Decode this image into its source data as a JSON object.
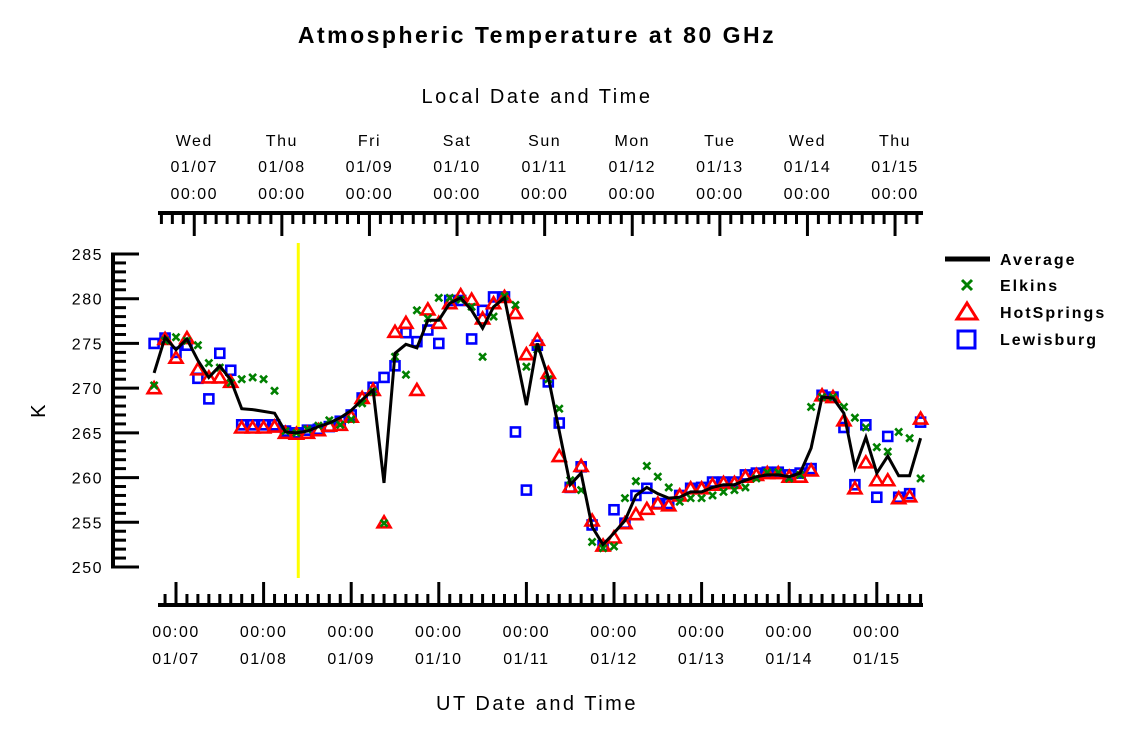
{
  "chart_data": {
    "type": "line",
    "title": "Atmospheric Temperature at 80 GHz",
    "top_axis_label": "Local Date and Time",
    "xlabel": "UT Date and Time",
    "ylabel": "K",
    "ylim": [
      250,
      285
    ],
    "yticks": [
      "250",
      "255",
      "260",
      "265",
      "270",
      "275",
      "280",
      "285"
    ],
    "x_units": "hours since 01/07 00:00 UT",
    "xlim": [
      -6,
      205
    ],
    "bottom_ticks": [
      {
        "time": "00:00",
        "date": "01/07"
      },
      {
        "time": "00:00",
        "date": "01/08"
      },
      {
        "time": "00:00",
        "date": "01/09"
      },
      {
        "time": "00:00",
        "date": "01/10"
      },
      {
        "time": "00:00",
        "date": "01/11"
      },
      {
        "time": "00:00",
        "date": "01/12"
      },
      {
        "time": "00:00",
        "date": "01/13"
      },
      {
        "time": "00:00",
        "date": "01/14"
      },
      {
        "time": "00:00",
        "date": "01/15"
      }
    ],
    "top_ticks": [
      {
        "day": "Wed",
        "date": "01/07",
        "time": "00:00"
      },
      {
        "day": "Thu",
        "date": "01/08",
        "time": "00:00"
      },
      {
        "day": "Fri",
        "date": "01/09",
        "time": "00:00"
      },
      {
        "day": "Sat",
        "date": "01/10",
        "time": "00:00"
      },
      {
        "day": "Sun",
        "date": "01/11",
        "time": "00:00"
      },
      {
        "day": "Mon",
        "date": "01/12",
        "time": "00:00"
      },
      {
        "day": "Tue",
        "date": "01/13",
        "time": "00:00"
      },
      {
        "day": "Wed",
        "date": "01/14",
        "time": "00:00"
      },
      {
        "day": "Thu",
        "date": "01/15",
        "time": "00:00"
      }
    ],
    "local_offset_hours": -5,
    "marker_line_hours": 33.5,
    "x": [
      -6,
      -3,
      0,
      3,
      6,
      9,
      12,
      15,
      18,
      21,
      24,
      27,
      30,
      33,
      36,
      39,
      42,
      45,
      48,
      51,
      54,
      57,
      60,
      63,
      66,
      69,
      72,
      75,
      78,
      81,
      84,
      87,
      90,
      93,
      96,
      99,
      102,
      105,
      108,
      111,
      114,
      117,
      120,
      123,
      126,
      129,
      132,
      135,
      138,
      141,
      144,
      147,
      150,
      153,
      156,
      159,
      162,
      165,
      168,
      171,
      174,
      177,
      180,
      183,
      186,
      189,
      192,
      195,
      198,
      201,
      204
    ],
    "legend_position": "right",
    "series": [
      {
        "name": "Average",
        "style": "line",
        "color": "#000000",
        "values": [
          271.7,
          275.7,
          274.3,
          275.5,
          273.1,
          271.2,
          272.5,
          270.9,
          267.7,
          267.6,
          267.4,
          267.2,
          265.1,
          265.0,
          265.2,
          265.7,
          266.1,
          266.7,
          267.5,
          268.7,
          269.8,
          259.4,
          273.9,
          274.9,
          274.5,
          277.6,
          277.6,
          279.5,
          280.1,
          278.7,
          276.7,
          279.1,
          280.1,
          null,
          268.1,
          275.0,
          271.2,
          null,
          259.2,
          260.5,
          254.5,
          252.5,
          253.8,
          255.2,
          258.0,
          258.9,
          258.2,
          257.7,
          257.8,
          258.4,
          258.4,
          258.9,
          259.2,
          259.2,
          259.7,
          260.1,
          260.3,
          260.3,
          260.1,
          260.5,
          263.3,
          269.0,
          268.9,
          267.2,
          261.1,
          264.5,
          260.5,
          262.4,
          260.2,
          260.2,
          264.4
        ]
      },
      {
        "name": "Elkins",
        "style": "x",
        "color": "#008000",
        "values": [
          270.3,
          275.3,
          275.7,
          275.3,
          274.8,
          272.8,
          272.3,
          270.6,
          271.0,
          271.2,
          271.0,
          269.7,
          265.2,
          265.0,
          265.4,
          265.8,
          266.4,
          265.9,
          266.5,
          268.3,
          269.6,
          254.9,
          273.5,
          271.5,
          278.7,
          277.8,
          280.1,
          280.1,
          279.9,
          279.1,
          273.5,
          278.0,
          280.3,
          279.3,
          272.4,
          274.3,
          271.0,
          267.7,
          259.7,
          258.6,
          252.8,
          252.1,
          252.3,
          257.7,
          259.6,
          261.3,
          260.1,
          258.9,
          257.3,
          257.7,
          257.7,
          258.0,
          258.4,
          258.6,
          258.9,
          259.9,
          260.6,
          260.6,
          259.9,
          260.3,
          267.9,
          269.0,
          269.0,
          267.9,
          266.7,
          265.6,
          263.4,
          262.9,
          265.1,
          264.4,
          259.9
        ]
      },
      {
        "name": "HotSprings",
        "style": "triangle",
        "color": "#ff0000",
        "values": [
          270.0,
          275.5,
          273.4,
          275.6,
          272.1,
          271.2,
          271.2,
          270.7,
          265.6,
          265.6,
          265.6,
          265.7,
          265.0,
          264.9,
          265.0,
          265.3,
          265.8,
          265.9,
          266.8,
          268.9,
          269.8,
          255.0,
          276.3,
          277.3,
          269.8,
          278.8,
          277.3,
          279.5,
          280.4,
          279.9,
          277.8,
          279.5,
          280.2,
          278.4,
          273.8,
          275.4,
          271.7,
          262.4,
          259.0,
          261.3,
          255.2,
          252.4,
          253.3,
          254.9,
          255.9,
          256.5,
          257.1,
          256.9,
          258.0,
          258.8,
          258.8,
          259.2,
          259.4,
          259.4,
          260.1,
          260.3,
          260.5,
          260.5,
          260.1,
          260.1,
          260.8,
          269.2,
          269.0,
          266.4,
          258.8,
          261.7,
          259.7,
          259.7,
          257.7,
          257.9,
          266.6
        ]
      },
      {
        "name": "Lewisburg",
        "style": "square",
        "color": "#0000ff",
        "values": [
          275.0,
          275.6,
          274.0,
          274.8,
          271.1,
          268.8,
          273.9,
          272.0,
          265.9,
          265.9,
          265.9,
          265.9,
          265.2,
          265.0,
          265.3,
          265.4,
          265.7,
          266.3,
          267.0,
          268.9,
          270.1,
          271.2,
          272.5,
          276.2,
          275.2,
          276.5,
          275.0,
          279.8,
          279.8,
          275.5,
          278.7,
          280.2,
          280.2,
          265.1,
          258.6,
          274.8,
          270.7,
          266.1,
          258.9,
          261.2,
          254.7,
          252.4,
          256.4,
          254.9,
          258.0,
          258.8,
          257.1,
          257.1,
          258.0,
          258.8,
          258.9,
          259.5,
          259.5,
          259.5,
          260.3,
          260.5,
          260.6,
          260.6,
          260.3,
          260.5,
          261.0,
          269.2,
          269.0,
          265.6,
          259.2,
          265.9,
          257.8,
          264.6,
          257.8,
          258.2,
          266.2
        ]
      }
    ],
    "marker_line_color": "#ffff00"
  }
}
